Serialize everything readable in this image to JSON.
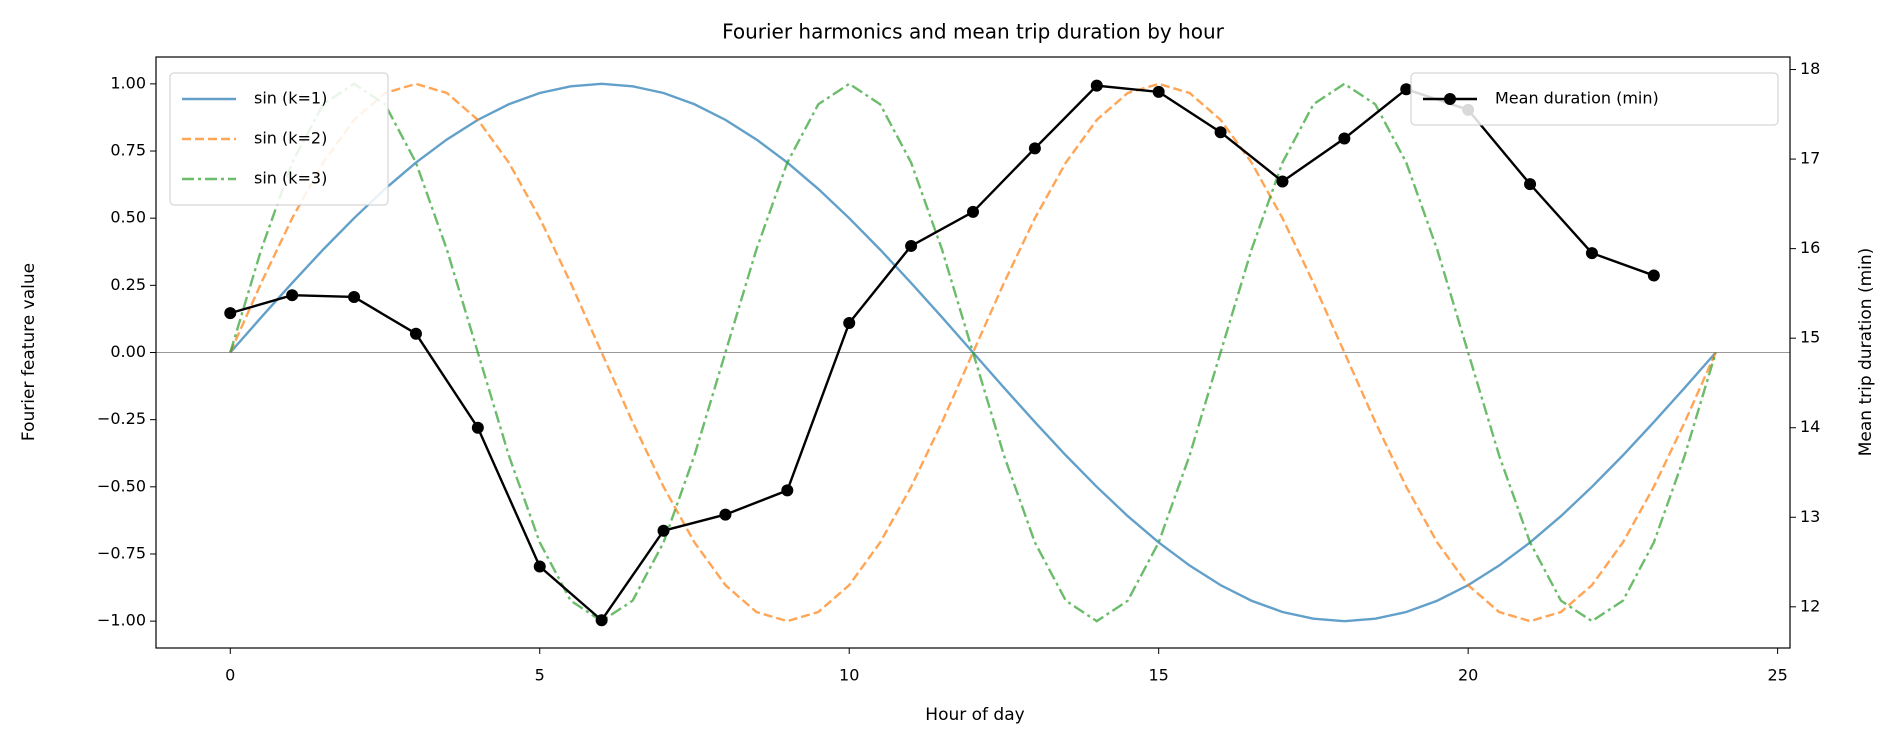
{
  "chart_data": {
    "type": "line",
    "title": "Fourier harmonics and mean trip duration by hour",
    "xlabel": "Hour of day",
    "ylabel": "Fourier feature value",
    "y2label": "Mean trip duration (min)",
    "xlim": [
      -1.2,
      25.2
    ],
    "xticks": [
      0,
      5,
      10,
      15,
      20,
      25
    ],
    "ylim": [
      -1.1,
      1.1
    ],
    "yticks": [
      {
        "value": -1,
        "label": "−1.00"
      },
      {
        "value": -0.75,
        "label": "−0.75"
      },
      {
        "value": -0.5,
        "label": "−0.50"
      },
      {
        "value": -0.25,
        "label": "−0.25"
      },
      {
        "value": 0,
        "label": "0.00"
      },
      {
        "value": 0.25,
        "label": "0.25"
      },
      {
        "value": 0.5,
        "label": "0.50"
      },
      {
        "value": 0.75,
        "label": "0.75"
      },
      {
        "value": 1,
        "label": "1.00"
      }
    ],
    "y2lim": [
      11.54,
      18.14
    ],
    "y2ticks": [
      12,
      13,
      14,
      15,
      16,
      17,
      18
    ],
    "legend": "upper left",
    "legend2": "upper right",
    "x": [
      0,
      0.5,
      1,
      1.5,
      2,
      2.5,
      3,
      3.5,
      4,
      4.5,
      5,
      5.5,
      6,
      6.5,
      7,
      7.5,
      8,
      8.5,
      9,
      9.5,
      10,
      10.5,
      11,
      11.5,
      12,
      12.5,
      13,
      13.5,
      14,
      14.5,
      15,
      15.5,
      16,
      16.5,
      17,
      17.5,
      18,
      18.5,
      19,
      19.5,
      20,
      20.5,
      21,
      21.5,
      22,
      22.5,
      23,
      23.5,
      24
    ],
    "series": [
      {
        "name": "sin (k=1)",
        "color": "#1f77b4",
        "dash": "solid",
        "values": [
          0,
          0.131,
          0.259,
          0.383,
          0.5,
          0.609,
          0.707,
          0.793,
          0.866,
          0.924,
          0.966,
          0.991,
          1,
          0.991,
          0.966,
          0.924,
          0.866,
          0.793,
          0.707,
          0.609,
          0.5,
          0.383,
          0.259,
          0.131,
          0,
          -0.131,
          -0.259,
          -0.383,
          -0.5,
          -0.609,
          -0.707,
          -0.793,
          -0.866,
          -0.924,
          -0.966,
          -0.991,
          -1,
          -0.991,
          -0.966,
          -0.924,
          -0.866,
          -0.793,
          -0.707,
          -0.609,
          -0.5,
          -0.383,
          -0.259,
          -0.131,
          0
        ]
      },
      {
        "name": "sin (k=2)",
        "color": "#ff7f0e",
        "dash": "dashed",
        "values": [
          0,
          0.259,
          0.5,
          0.707,
          0.866,
          0.966,
          1,
          0.966,
          0.866,
          0.707,
          0.5,
          0.259,
          0,
          -0.259,
          -0.5,
          -0.707,
          -0.866,
          -0.966,
          -1,
          -0.966,
          -0.866,
          -0.707,
          -0.5,
          -0.259,
          0,
          0.259,
          0.5,
          0.707,
          0.866,
          0.966,
          1,
          0.966,
          0.866,
          0.707,
          0.5,
          0.259,
          0,
          -0.259,
          -0.5,
          -0.707,
          -0.866,
          -0.966,
          -1,
          -0.966,
          -0.866,
          -0.707,
          -0.5,
          -0.259,
          0
        ]
      },
      {
        "name": "sin (k=3)",
        "color": "#2ca02c",
        "dash": "dashdot",
        "values": [
          0,
          0.383,
          0.707,
          0.924,
          1,
          0.924,
          0.707,
          0.383,
          0,
          -0.383,
          -0.707,
          -0.924,
          -1,
          -0.924,
          -0.707,
          -0.383,
          0,
          0.383,
          0.707,
          0.924,
          1,
          0.924,
          0.707,
          0.383,
          0,
          -0.383,
          -0.707,
          -0.924,
          -1,
          -0.924,
          -0.707,
          -0.383,
          0,
          0.383,
          0.707,
          0.924,
          1,
          0.924,
          0.707,
          0.383,
          0,
          -0.383,
          -0.707,
          -0.924,
          -1,
          -0.924,
          -0.707,
          -0.383,
          0
        ]
      },
      {
        "name": "Mean duration (min)",
        "color": "#000000",
        "dash": "solid",
        "axis": "y2",
        "marker": "circle",
        "x": [
          0,
          1,
          2,
          3,
          4,
          5,
          6,
          7,
          8,
          9,
          10,
          11,
          12,
          13,
          14,
          15,
          16,
          17,
          18,
          19,
          20,
          21,
          22,
          23
        ],
        "values": [
          15.28,
          15.48,
          15.46,
          15.05,
          14.0,
          12.45,
          11.85,
          12.85,
          13.03,
          13.3,
          15.17,
          16.03,
          16.41,
          17.12,
          17.82,
          17.75,
          17.3,
          16.75,
          17.23,
          17.78,
          17.55,
          16.72,
          15.95,
          15.7
        ]
      }
    ]
  }
}
